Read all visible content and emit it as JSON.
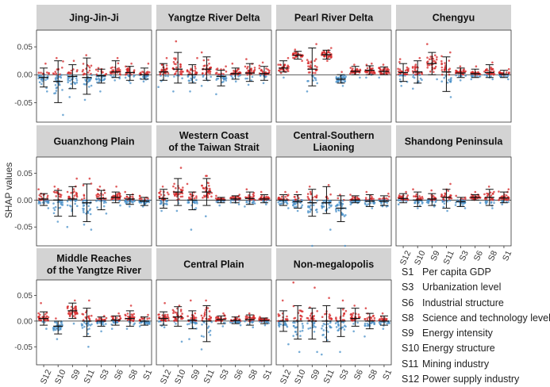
{
  "colors": {
    "positive": "#d62728",
    "negative": "#4a90c8",
    "strip": "#d3d3d3",
    "axis": "#333333"
  },
  "chart_data": {
    "type": "scatter",
    "subtype": "SHAP dot plot with error bars, faceted by region",
    "ylabel": "SHAP values",
    "ylim": [
      -0.085,
      0.08
    ],
    "yticks": [
      -0.05,
      0.0,
      0.05
    ],
    "ytick_labels": [
      "-0.05",
      "0.00",
      "0.05"
    ],
    "categories": [
      "S12",
      "S10",
      "S9",
      "S11",
      "S3",
      "S6",
      "S8",
      "S1"
    ],
    "facets": [
      {
        "title": [
          "Jing-Jin-Ji"
        ],
        "features": [
          {
            "code": "S12",
            "mean": -0.005,
            "lo": -0.022,
            "hi": 0.012,
            "max": 0.02,
            "min": -0.03
          },
          {
            "code": "S10",
            "mean": -0.012,
            "lo": -0.05,
            "hi": 0.025,
            "max": 0.03,
            "min": -0.072
          },
          {
            "code": "S9",
            "mean": -0.003,
            "lo": -0.025,
            "hi": 0.018,
            "max": 0.025,
            "min": -0.04
          },
          {
            "code": "S11",
            "mean": -0.005,
            "lo": -0.035,
            "hi": 0.03,
            "max": 0.035,
            "min": -0.045
          },
          {
            "code": "S3",
            "mean": -0.002,
            "lo": -0.015,
            "hi": 0.01,
            "max": 0.012,
            "min": -0.03
          },
          {
            "code": "S6",
            "mean": 0.005,
            "lo": -0.005,
            "hi": 0.025,
            "max": 0.03,
            "min": -0.01
          },
          {
            "code": "S8",
            "mean": 0.004,
            "lo": -0.01,
            "hi": 0.015,
            "max": 0.02,
            "min": -0.015
          },
          {
            "code": "S1",
            "mean": 0.0,
            "lo": -0.008,
            "hi": 0.012,
            "max": 0.02,
            "min": -0.012
          }
        ]
      },
      {
        "title": [
          "Yangtze River Delta"
        ],
        "features": [
          {
            "code": "S12",
            "mean": 0.005,
            "lo": -0.01,
            "hi": 0.02,
            "max": 0.03,
            "min": -0.022
          },
          {
            "code": "S10",
            "mean": 0.01,
            "lo": -0.015,
            "hi": 0.04,
            "max": 0.06,
            "min": -0.03
          },
          {
            "code": "S9",
            "mean": 0.0,
            "lo": -0.015,
            "hi": 0.018,
            "max": 0.03,
            "min": -0.03
          },
          {
            "code": "S11",
            "mean": 0.01,
            "lo": -0.01,
            "hi": 0.032,
            "max": 0.04,
            "min": -0.02
          },
          {
            "code": "S3",
            "mean": -0.003,
            "lo": -0.02,
            "hi": 0.008,
            "max": 0.015,
            "min": -0.035
          },
          {
            "code": "S6",
            "mean": 0.002,
            "lo": -0.008,
            "hi": 0.012,
            "max": 0.02,
            "min": -0.012
          },
          {
            "code": "S8",
            "mean": 0.003,
            "lo": -0.012,
            "hi": 0.02,
            "max": 0.028,
            "min": -0.018
          },
          {
            "code": "S1",
            "mean": 0.002,
            "lo": -0.01,
            "hi": 0.015,
            "max": 0.022,
            "min": -0.015
          }
        ]
      },
      {
        "title": [
          "Pearl River Delta"
        ],
        "features": [
          {
            "code": "S12",
            "mean": 0.012,
            "lo": 0.005,
            "hi": 0.025,
            "max": 0.03,
            "min": -0.005
          },
          {
            "code": "S10",
            "mean": 0.035,
            "lo": 0.028,
            "hi": 0.042,
            "max": 0.045,
            "min": 0.025
          },
          {
            "code": "S9",
            "mean": 0.01,
            "lo": -0.02,
            "hi": 0.048,
            "max": 0.055,
            "min": -0.03
          },
          {
            "code": "S11",
            "mean": 0.036,
            "lo": 0.028,
            "hi": 0.044,
            "max": 0.048,
            "min": 0.025
          },
          {
            "code": "S3",
            "mean": -0.008,
            "lo": -0.015,
            "hi": 0.0,
            "max": 0.005,
            "min": -0.02
          },
          {
            "code": "S6",
            "mean": 0.006,
            "lo": 0.0,
            "hi": 0.015,
            "max": 0.018,
            "min": -0.005
          },
          {
            "code": "S8",
            "mean": 0.008,
            "lo": 0.0,
            "hi": 0.016,
            "max": 0.02,
            "min": -0.005
          },
          {
            "code": "S1",
            "mean": 0.006,
            "lo": 0.0,
            "hi": 0.014,
            "max": 0.018,
            "min": -0.005
          }
        ]
      },
      {
        "title": [
          "Chengyu"
        ],
        "features": [
          {
            "code": "S12",
            "mean": 0.004,
            "lo": -0.012,
            "hi": 0.02,
            "max": 0.028,
            "min": -0.02
          },
          {
            "code": "S10",
            "mean": 0.005,
            "lo": -0.015,
            "hi": 0.025,
            "max": 0.03,
            "min": -0.025
          },
          {
            "code": "S9",
            "mean": 0.02,
            "lo": 0.0,
            "hi": 0.04,
            "max": 0.055,
            "min": -0.008
          },
          {
            "code": "S11",
            "mean": 0.005,
            "lo": -0.03,
            "hi": 0.032,
            "max": 0.04,
            "min": -0.04
          },
          {
            "code": "S3",
            "mean": 0.003,
            "lo": -0.005,
            "hi": 0.012,
            "max": 0.015,
            "min": -0.01
          },
          {
            "code": "S6",
            "mean": 0.002,
            "lo": -0.005,
            "hi": 0.01,
            "max": 0.015,
            "min": -0.008
          },
          {
            "code": "S8",
            "mean": 0.004,
            "lo": -0.005,
            "hi": 0.018,
            "max": 0.022,
            "min": -0.008
          },
          {
            "code": "S1",
            "mean": 0.001,
            "lo": -0.005,
            "hi": 0.008,
            "max": 0.01,
            "min": -0.008
          }
        ]
      },
      {
        "title": [
          "Guanzhong Plain"
        ],
        "features": [
          {
            "code": "S12",
            "mean": 0.002,
            "lo": -0.01,
            "hi": 0.012,
            "max": 0.02,
            "min": -0.015
          },
          {
            "code": "S10",
            "mean": 0.0,
            "lo": -0.03,
            "hi": 0.018,
            "max": 0.025,
            "min": -0.04
          },
          {
            "code": "S9",
            "mean": 0.002,
            "lo": -0.03,
            "hi": 0.025,
            "max": 0.04,
            "min": -0.05
          },
          {
            "code": "S11",
            "mean": -0.005,
            "lo": -0.04,
            "hi": 0.03,
            "max": 0.04,
            "min": -0.055
          },
          {
            "code": "S3",
            "mean": 0.003,
            "lo": -0.018,
            "hi": 0.018,
            "max": 0.025,
            "min": -0.025
          },
          {
            "code": "S6",
            "mean": 0.005,
            "lo": -0.005,
            "hi": 0.015,
            "max": 0.025,
            "min": -0.01
          },
          {
            "code": "S8",
            "mean": 0.002,
            "lo": -0.008,
            "hi": 0.01,
            "max": 0.015,
            "min": -0.012
          },
          {
            "code": "S1",
            "mean": -0.002,
            "lo": -0.01,
            "hi": 0.005,
            "max": 0.008,
            "min": -0.012
          }
        ]
      },
      {
        "title": [
          "Western Coast",
          "of the Taiwan Strait"
        ],
        "features": [
          {
            "code": "S12",
            "mean": 0.003,
            "lo": -0.015,
            "hi": 0.02,
            "max": 0.025,
            "min": -0.02
          },
          {
            "code": "S10",
            "mean": 0.015,
            "lo": -0.01,
            "hi": 0.04,
            "max": 0.06,
            "min": -0.02
          },
          {
            "code": "S9",
            "mean": 0.0,
            "lo": -0.018,
            "hi": 0.015,
            "max": 0.03,
            "min": -0.055
          },
          {
            "code": "S11",
            "mean": 0.015,
            "lo": -0.01,
            "hi": 0.04,
            "max": 0.045,
            "min": -0.03
          },
          {
            "code": "S3",
            "mean": 0.0,
            "lo": -0.005,
            "hi": 0.005,
            "max": 0.008,
            "min": -0.01
          },
          {
            "code": "S6",
            "mean": 0.002,
            "lo": -0.005,
            "hi": 0.008,
            "max": 0.01,
            "min": -0.008
          },
          {
            "code": "S8",
            "mean": 0.003,
            "lo": -0.008,
            "hi": 0.015,
            "max": 0.02,
            "min": -0.012
          },
          {
            "code": "S1",
            "mean": 0.002,
            "lo": -0.005,
            "hi": 0.01,
            "max": 0.015,
            "min": -0.008
          }
        ]
      },
      {
        "title": [
          "Central-Southern",
          "Liaoning"
        ],
        "features": [
          {
            "code": "S12",
            "mean": 0.0,
            "lo": -0.01,
            "hi": 0.01,
            "max": 0.015,
            "min": -0.015
          },
          {
            "code": "S10",
            "mean": -0.003,
            "lo": -0.015,
            "hi": 0.01,
            "max": 0.015,
            "min": -0.02
          },
          {
            "code": "S9",
            "mean": -0.005,
            "lo": -0.03,
            "hi": 0.02,
            "max": 0.025,
            "min": -0.085
          },
          {
            "code": "S11",
            "mean": -0.005,
            "lo": -0.025,
            "hi": 0.025,
            "max": 0.028,
            "min": -0.055
          },
          {
            "code": "S3",
            "mean": -0.015,
            "lo": -0.04,
            "hi": 0.008,
            "max": 0.01,
            "min": -0.085
          },
          {
            "code": "S6",
            "mean": 0.0,
            "lo": -0.005,
            "hi": 0.008,
            "max": 0.01,
            "min": -0.008
          },
          {
            "code": "S8",
            "mean": -0.002,
            "lo": -0.012,
            "hi": 0.01,
            "max": 0.015,
            "min": -0.015
          },
          {
            "code": "S1",
            "mean": -0.002,
            "lo": -0.01,
            "hi": 0.008,
            "max": 0.012,
            "min": -0.012
          }
        ]
      },
      {
        "title": [
          "Shandong Peninsula"
        ],
        "features": [
          {
            "code": "S12",
            "mean": 0.003,
            "lo": -0.005,
            "hi": 0.012,
            "max": 0.015,
            "min": -0.008
          },
          {
            "code": "S10",
            "mean": 0.0,
            "lo": -0.012,
            "hi": 0.015,
            "max": 0.02,
            "min": -0.015
          },
          {
            "code": "S9",
            "mean": 0.002,
            "lo": -0.01,
            "hi": 0.012,
            "max": 0.018,
            "min": -0.012
          },
          {
            "code": "S11",
            "mean": 0.005,
            "lo": -0.015,
            "hi": 0.02,
            "max": 0.03,
            "min": -0.02
          },
          {
            "code": "S3",
            "mean": -0.003,
            "lo": -0.012,
            "hi": 0.005,
            "max": 0.008,
            "min": -0.015
          },
          {
            "code": "S6",
            "mean": 0.005,
            "lo": 0.0,
            "hi": 0.01,
            "max": 0.015,
            "min": -0.005
          },
          {
            "code": "S8",
            "mean": 0.005,
            "lo": -0.01,
            "hi": 0.02,
            "max": 0.025,
            "min": -0.015
          },
          {
            "code": "S1",
            "mean": 0.004,
            "lo": -0.005,
            "hi": 0.015,
            "max": 0.02,
            "min": -0.008
          }
        ]
      },
      {
        "title": [
          "Middle Reaches",
          "of the Yangtze River"
        ],
        "features": [
          {
            "code": "S12",
            "mean": 0.005,
            "lo": -0.008,
            "hi": 0.018,
            "max": 0.035,
            "min": -0.015
          },
          {
            "code": "S10",
            "mean": -0.01,
            "lo": -0.025,
            "hi": 0.0,
            "max": 0.005,
            "min": -0.035
          },
          {
            "code": "S9",
            "mean": 0.02,
            "lo": 0.005,
            "hi": 0.035,
            "max": 0.04,
            "min": -0.005
          },
          {
            "code": "S11",
            "mean": 0.0,
            "lo": -0.03,
            "hi": 0.025,
            "max": 0.04,
            "min": -0.05
          },
          {
            "code": "S3",
            "mean": 0.0,
            "lo": -0.01,
            "hi": 0.008,
            "max": 0.01,
            "min": -0.02
          },
          {
            "code": "S6",
            "mean": 0.002,
            "lo": -0.008,
            "hi": 0.01,
            "max": 0.015,
            "min": -0.015
          },
          {
            "code": "S8",
            "mean": 0.005,
            "lo": -0.01,
            "hi": 0.02,
            "max": 0.03,
            "min": -0.015
          },
          {
            "code": "S1",
            "mean": 0.0,
            "lo": -0.008,
            "hi": 0.008,
            "max": 0.012,
            "min": -0.01
          }
        ]
      },
      {
        "title": [
          "Central Plain"
        ],
        "features": [
          {
            "code": "S12",
            "mean": 0.005,
            "lo": -0.008,
            "hi": 0.018,
            "max": 0.035,
            "min": -0.012
          },
          {
            "code": "S10",
            "mean": 0.008,
            "lo": -0.01,
            "hi": 0.028,
            "max": 0.03,
            "min": -0.04
          },
          {
            "code": "S9",
            "mean": 0.002,
            "lo": -0.015,
            "hi": 0.02,
            "max": 0.04,
            "min": -0.035
          },
          {
            "code": "S11",
            "mean": 0.0,
            "lo": -0.04,
            "hi": 0.03,
            "max": 0.04,
            "min": -0.055
          },
          {
            "code": "S3",
            "mean": 0.003,
            "lo": -0.005,
            "hi": 0.01,
            "max": 0.015,
            "min": -0.01
          },
          {
            "code": "S6",
            "mean": 0.001,
            "lo": -0.005,
            "hi": 0.008,
            "max": 0.01,
            "min": -0.008
          },
          {
            "code": "S8",
            "mean": 0.003,
            "lo": -0.008,
            "hi": 0.012,
            "max": 0.015,
            "min": -0.012
          },
          {
            "code": "S1",
            "mean": 0.001,
            "lo": -0.005,
            "hi": 0.006,
            "max": 0.008,
            "min": -0.008
          }
        ]
      },
      {
        "title": [
          "Non-megalopolis"
        ],
        "features": [
          {
            "code": "S12",
            "mean": 0.0,
            "lo": -0.02,
            "hi": 0.02,
            "max": 0.04,
            "min": -0.045
          },
          {
            "code": "S10",
            "mean": 0.0,
            "lo": -0.035,
            "hi": 0.03,
            "max": 0.075,
            "min": -0.06
          },
          {
            "code": "S9",
            "mean": 0.0,
            "lo": -0.035,
            "hi": 0.025,
            "max": 0.065,
            "min": -0.06
          },
          {
            "code": "S11",
            "mean": 0.0,
            "lo": -0.04,
            "hi": 0.03,
            "max": 0.045,
            "min": -0.065
          },
          {
            "code": "S3",
            "mean": 0.0,
            "lo": -0.03,
            "hi": 0.025,
            "max": 0.04,
            "min": -0.06
          },
          {
            "code": "S6",
            "mean": 0.005,
            "lo": -0.01,
            "hi": 0.025,
            "max": 0.03,
            "min": -0.02
          },
          {
            "code": "S8",
            "mean": 0.0,
            "lo": -0.015,
            "hi": 0.015,
            "max": 0.025,
            "min": -0.03
          },
          {
            "code": "S1",
            "mean": 0.0,
            "lo": -0.008,
            "hi": 0.01,
            "max": 0.015,
            "min": -0.015
          }
        ]
      }
    ]
  },
  "legend": [
    {
      "code": "S1",
      "label": "Per capita GDP"
    },
    {
      "code": "S3",
      "label": "Urbanization level"
    },
    {
      "code": "S6",
      "label": "Industrial structure"
    },
    {
      "code": "S8",
      "label": "Science and technology level"
    },
    {
      "code": "S9",
      "label": "Energy intensity"
    },
    {
      "code": "S10",
      "label": "Energy structure"
    },
    {
      "code": "S11",
      "label": "Mining industry"
    },
    {
      "code": "S12",
      "label": "Power supply industry"
    }
  ]
}
